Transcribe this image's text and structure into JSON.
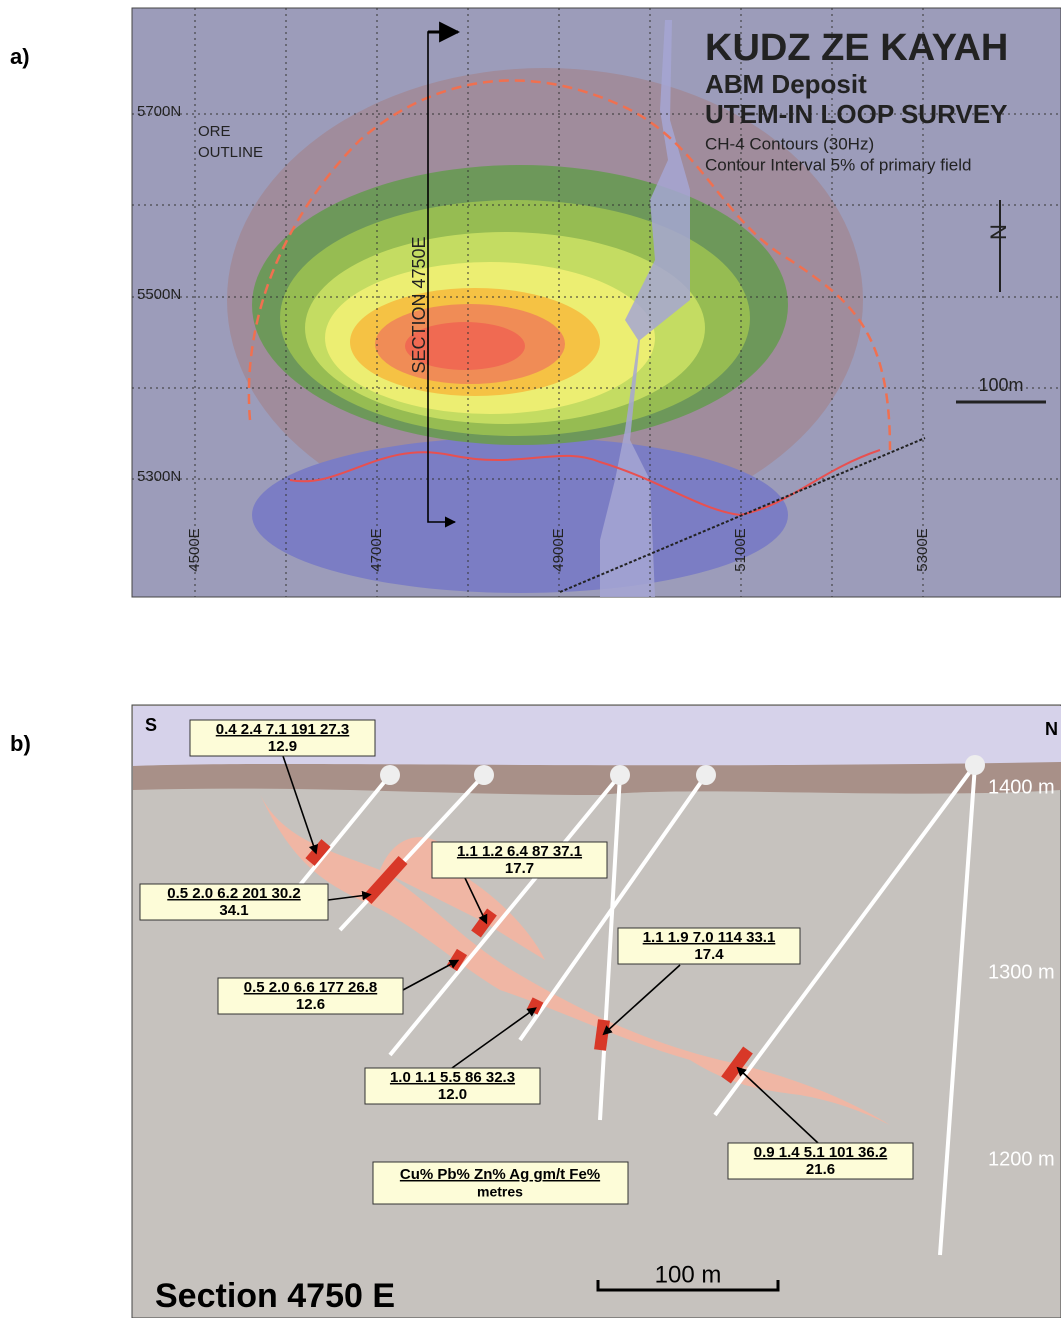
{
  "panel_a": {
    "label": "a)",
    "title": "KUDZ ZE KAYAH",
    "subtitle": "ABM Deposit",
    "survey": "UTEM-IN LOOP SURVEY",
    "contours": "CH-4 Contours (30Hz)",
    "interval": "Contour Interval 5% of primary field",
    "ore_outline": [
      "ORE",
      "OUTLINE"
    ],
    "section": "SECTION 4750E",
    "north": "N",
    "scale": "100m",
    "northings": [
      "5700N",
      "5500N",
      "5300N"
    ],
    "eastings": [
      "4500E",
      "4700E",
      "4900E",
      "5100E",
      "5300E"
    ]
  },
  "panel_b": {
    "label": "b)",
    "south": "S",
    "north": "N",
    "elevations": [
      "1400 m",
      "1300 m",
      "1200 m"
    ],
    "intercepts": [
      {
        "grades": "0.4 2.4 7.1 191 27.3",
        "metres": "12.9"
      },
      {
        "grades": "1.1 1.2 6.4 87 37.1",
        "metres": "17.7"
      },
      {
        "grades": "0.5 2.0 6.2 201 30.2",
        "metres": "34.1"
      },
      {
        "grades": "1.1 1.9 7.0 114 33.1",
        "metres": "17.4"
      },
      {
        "grades": "0.5 2.0 6.6 177 26.8",
        "metres": "12.6"
      },
      {
        "grades": "1.0 1.1 5.5 86 32.3",
        "metres": "12.0"
      },
      {
        "grades": "0.9 1.4 5.1 101 36.2",
        "metres": "21.6"
      }
    ],
    "legend": {
      "grades": "Cu% Pb% Zn% Ag gm/t Fe%",
      "metres": "metres"
    },
    "scale": "100 m",
    "title": "Section 4750 E"
  }
}
